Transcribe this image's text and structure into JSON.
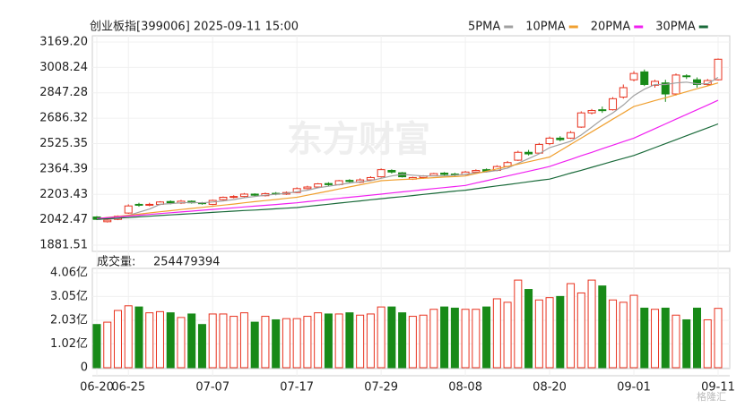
{
  "chart_data": [
    {
      "type": "candlestick",
      "title": "创业板指[399006] 2025-09-11 15:00",
      "watermark": "东方财富",
      "categories": [
        "06-20",
        null,
        null,
        "06-25",
        null,
        null,
        null,
        null,
        null,
        null,
        null,
        "07-07",
        null,
        null,
        null,
        null,
        null,
        null,
        null,
        "07-17",
        null,
        null,
        null,
        null,
        null,
        null,
        null,
        "07-29",
        null,
        null,
        null,
        null,
        null,
        null,
        null,
        "08-08",
        null,
        null,
        null,
        null,
        null,
        null,
        null,
        "08-20",
        null,
        null,
        null,
        null,
        null,
        null,
        null,
        "09-01",
        null,
        null,
        null,
        null,
        null,
        null,
        null,
        "09-11"
      ],
      "open": [
        2060,
        2030,
        2045,
        2085,
        2140,
        2135,
        2140,
        2158,
        2148,
        2160,
        2150,
        2140,
        2170,
        2185,
        2190,
        2205,
        2195,
        2210,
        2205,
        2215,
        2240,
        2250,
        2272,
        2265,
        2292,
        2280,
        2295,
        2315,
        2355,
        2340,
        2300,
        2310,
        2322,
        2338,
        2332,
        2330,
        2345,
        2360,
        2355,
        2380,
        2420,
        2470,
        2465,
        2525,
        2560,
        2560,
        2630,
        2720,
        2740,
        2740,
        2820,
        2930,
        2980,
        2895,
        2910,
        2840,
        2955,
        2930,
        2900,
        2930
      ],
      "high": [
        2065,
        2045,
        2070,
        2140,
        2150,
        2150,
        2160,
        2165,
        2168,
        2165,
        2155,
        2170,
        2190,
        2198,
        2212,
        2210,
        2215,
        2218,
        2222,
        2248,
        2258,
        2275,
        2280,
        2295,
        2300,
        2305,
        2318,
        2368,
        2362,
        2345,
        2315,
        2325,
        2340,
        2345,
        2340,
        2352,
        2362,
        2368,
        2388,
        2415,
        2480,
        2485,
        2530,
        2570,
        2572,
        2605,
        2730,
        2745,
        2760,
        2820,
        2900,
        2985,
        2995,
        2930,
        2930,
        2970,
        2965,
        2945,
        2935,
        3065
      ],
      "low": [
        2040,
        2025,
        2040,
        2080,
        2125,
        2128,
        2135,
        2140,
        2142,
        2145,
        2138,
        2135,
        2165,
        2178,
        2185,
        2190,
        2190,
        2198,
        2200,
        2212,
        2235,
        2245,
        2255,
        2260,
        2278,
        2275,
        2290,
        2310,
        2335,
        2310,
        2295,
        2302,
        2318,
        2322,
        2318,
        2325,
        2340,
        2342,
        2350,
        2375,
        2415,
        2450,
        2460,
        2515,
        2540,
        2555,
        2625,
        2710,
        2720,
        2735,
        2810,
        2920,
        2890,
        2880,
        2790,
        2830,
        2935,
        2880,
        2890,
        2925
      ],
      "close": [
        2045,
        2040,
        2065,
        2130,
        2135,
        2140,
        2155,
        2150,
        2160,
        2150,
        2145,
        2165,
        2185,
        2190,
        2205,
        2198,
        2208,
        2205,
        2215,
        2240,
        2250,
        2270,
        2265,
        2290,
        2285,
        2295,
        2310,
        2360,
        2345,
        2315,
        2310,
        2320,
        2335,
        2330,
        2328,
        2345,
        2355,
        2350,
        2380,
        2405,
        2470,
        2460,
        2520,
        2560,
        2550,
        2595,
        2720,
        2735,
        2735,
        2810,
        2880,
        2970,
        2900,
        2920,
        2840,
        2960,
        2950,
        2900,
        2925,
        3060
      ],
      "up_color": "#e8321e",
      "down_color": "#188a18",
      "series": [
        {
          "name": "5PMA",
          "color": "#a0a0a0",
          "values": [
            2050,
            2048,
            2050,
            2070,
            2090,
            2110,
            2140,
            2145,
            2150,
            2152,
            2150,
            2155,
            2162,
            2170,
            2182,
            2190,
            2198,
            2204,
            2210,
            2220,
            2230,
            2245,
            2255,
            2265,
            2275,
            2283,
            2290,
            2305,
            2320,
            2330,
            2325,
            2320,
            2320,
            2320,
            2325,
            2330,
            2340,
            2345,
            2355,
            2370,
            2400,
            2430,
            2460,
            2500,
            2520,
            2540,
            2580,
            2630,
            2680,
            2720,
            2770,
            2830,
            2870,
            2900,
            2900,
            2910,
            2915,
            2905,
            2905,
            2945
          ]
        },
        {
          "name": "10PMA",
          "color": "#f0a030",
          "values": [
            2050,
            2057,
            2064,
            2071,
            2078,
            2086,
            2093,
            2100,
            2107,
            2114,
            2121,
            2128,
            2135,
            2142,
            2150,
            2157,
            2164,
            2171,
            2178,
            2185,
            2198,
            2211,
            2224,
            2238,
            2251,
            2264,
            2277,
            2290,
            2294,
            2298,
            2301,
            2305,
            2309,
            2313,
            2316,
            2320,
            2335,
            2350,
            2365,
            2380,
            2395,
            2410,
            2425,
            2440,
            2480,
            2520,
            2560,
            2600,
            2640,
            2680,
            2720,
            2760,
            2779,
            2798,
            2816,
            2835,
            2854,
            2873,
            2891,
            2910
          ]
        },
        {
          "name": "20PMA",
          "color": "#f020f0",
          "values": [
            2050,
            2055,
            2061,
            2066,
            2071,
            2076,
            2082,
            2087,
            2092,
            2097,
            2103,
            2108,
            2113,
            2118,
            2124,
            2129,
            2134,
            2139,
            2145,
            2150,
            2157,
            2164,
            2171,
            2178,
            2185,
            2191,
            2198,
            2205,
            2212,
            2219,
            2226,
            2233,
            2240,
            2246,
            2253,
            2260,
            2275,
            2290,
            2305,
            2320,
            2335,
            2350,
            2365,
            2380,
            2403,
            2425,
            2448,
            2470,
            2493,
            2515,
            2538,
            2560,
            2590,
            2620,
            2650,
            2680,
            2710,
            2740,
            2770,
            2800
          ]
        },
        {
          "name": "30PMA",
          "color": "#1a6a3a",
          "values": [
            2045,
            2049,
            2053,
            2057,
            2061,
            2065,
            2069,
            2073,
            2077,
            2081,
            2085,
            2089,
            2093,
            2097,
            2101,
            2104,
            2108,
            2112,
            2116,
            2120,
            2127,
            2134,
            2141,
            2148,
            2155,
            2162,
            2169,
            2176,
            2183,
            2189,
            2196,
            2203,
            2210,
            2217,
            2224,
            2230,
            2239,
            2248,
            2257,
            2265,
            2274,
            2283,
            2292,
            2300,
            2319,
            2338,
            2356,
            2375,
            2394,
            2413,
            2431,
            2450,
            2475,
            2500,
            2525,
            2550,
            2575,
            2600,
            2625,
            2650
          ]
        }
      ],
      "legend": "top-right",
      "ylim": [
        1881.51,
        3169.2
      ],
      "yticks": [
        {
          "value": 3169.2,
          "label": "3169.20"
        },
        3008.24,
        2847.28,
        2686.32,
        2525.35,
        2364.39,
        2203.43,
        2042.47,
        1881.51
      ],
      "grid": true
    },
    {
      "type": "bar",
      "title": "成交量:",
      "total": 254479394,
      "values": [
        1.85,
        1.95,
        2.45,
        2.65,
        2.6,
        2.35,
        2.4,
        2.35,
        2.15,
        2.3,
        1.85,
        2.3,
        2.3,
        2.2,
        2.35,
        1.95,
        2.2,
        2.05,
        2.1,
        2.1,
        2.2,
        2.35,
        2.3,
        2.3,
        2.35,
        2.25,
        2.3,
        2.6,
        2.6,
        2.35,
        2.2,
        2.25,
        2.5,
        2.6,
        2.55,
        2.5,
        2.5,
        2.6,
        2.95,
        2.8,
        3.75,
        3.35,
        2.9,
        3.0,
        3.05,
        3.6,
        3.2,
        3.75,
        3.5,
        2.9,
        2.8,
        3.1,
        2.55,
        2.5,
        2.55,
        2.25,
        2.05,
        2.55,
        2.05,
        2.54
      ],
      "ylim": [
        0,
        4.06
      ],
      "yticks": [
        {
          "value": 4.06,
          "label": "4.06亿"
        },
        {
          "value": 3.05,
          "label": "3.05亿"
        },
        {
          "value": 2.03,
          "label": "2.03亿"
        },
        {
          "value": 1.02,
          "label": "1.02亿"
        },
        0
      ],
      "brand": "格隆汇"
    }
  ]
}
